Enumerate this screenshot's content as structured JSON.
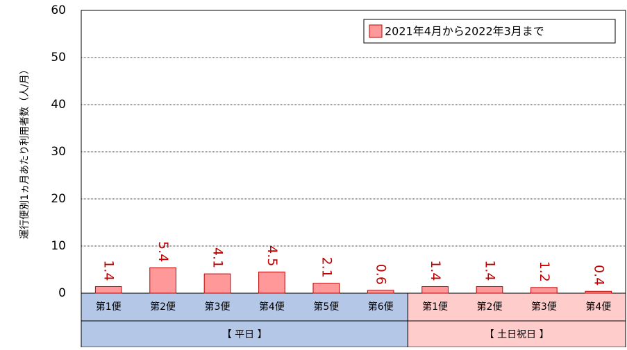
{
  "chart_data": {
    "type": "bar",
    "y_label": "運行便別1ヵ月あたり利用者数（人/月）",
    "categories": [
      "第1便",
      "第2便",
      "第3便",
      "第4便",
      "第5便",
      "第6便",
      "第1便",
      "第2便",
      "第3便",
      "第4便"
    ],
    "groups": [
      "【 平日 】",
      "【 土日祝日 】"
    ],
    "series": [
      {
        "name": "2021年4月から2022年3月まで",
        "color": "#ff9999",
        "values": [
          1.4,
          5.4,
          4.1,
          4.5,
          2.1,
          0.6,
          1.4,
          1.4,
          1.2,
          0.4
        ]
      }
    ],
    "ylim": [
      0,
      60
    ],
    "yticks": [
      0,
      10,
      20,
      30,
      40,
      50,
      60
    ],
    "grid": true,
    "legend": "top-right"
  }
}
